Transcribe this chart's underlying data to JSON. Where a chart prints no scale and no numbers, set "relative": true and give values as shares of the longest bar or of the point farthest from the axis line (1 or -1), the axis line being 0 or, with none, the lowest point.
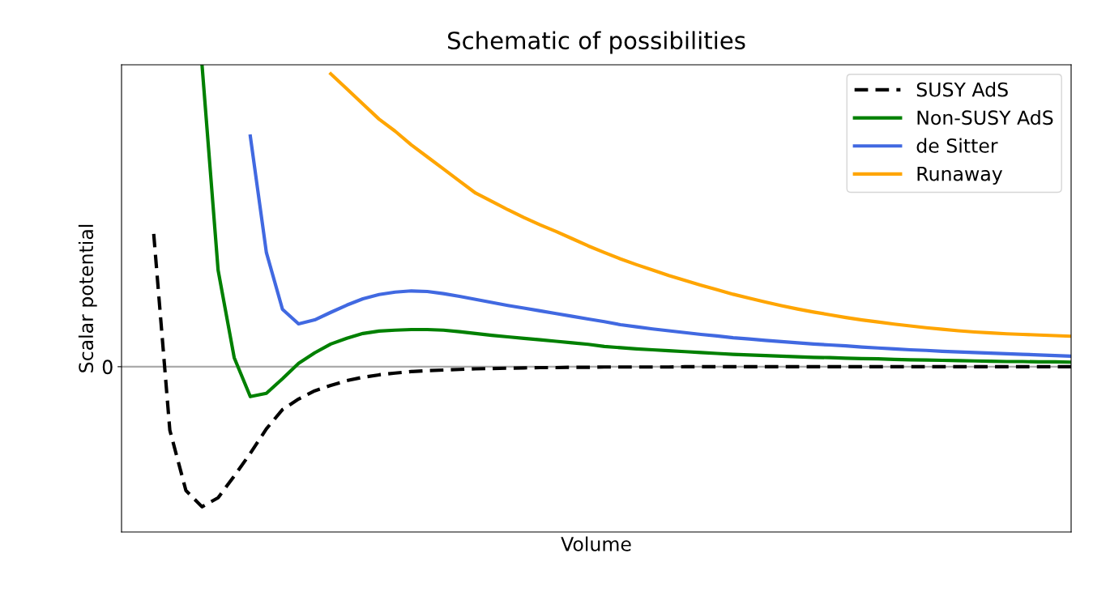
{
  "chart_data": {
    "type": "line",
    "title": "Schematic of possibilities",
    "xlabel": "Volume",
    "ylabel": "Scalar potential",
    "relative": true,
    "legend": "top right",
    "categories": [
      null,
      null,
      null,
      null,
      null,
      null,
      null,
      null,
      null,
      null,
      null,
      null,
      null,
      null,
      null,
      null,
      null,
      null,
      null,
      null,
      null,
      null,
      null,
      null,
      null,
      null,
      null,
      null,
      null,
      null,
      null,
      null,
      null,
      null,
      null,
      null,
      null,
      null,
      null,
      null,
      null,
      null,
      null,
      null,
      null,
      null,
      null,
      null,
      null,
      null,
      null,
      null,
      null,
      null,
      null,
      null,
      null,
      null,
      null,
      null
    ],
    "ref_lines": [
      {
        "axis": "y",
        "value": 0,
        "label": "0",
        "color": "#aaaaaa"
      }
    ],
    "series": [
      {
        "name": "SUSY AdS",
        "color": "#000000",
        "line_style": "dashed",
        "values": [
          null,
          null,
          0.44,
          -0.21,
          -0.41,
          -0.464,
          -0.434,
          -0.362,
          -0.287,
          -0.206,
          -0.142,
          -0.107,
          -0.08,
          -0.062,
          -0.046,
          -0.035,
          -0.027,
          -0.021,
          -0.016,
          -0.013,
          -0.011,
          -0.009,
          -0.007,
          -0.006,
          -0.005,
          -0.004,
          -0.003,
          -0.003,
          -0.002,
          -0.002,
          -0.001,
          -0.001,
          -0.001,
          -0.001,
          -0.001,
          0,
          0,
          0,
          0,
          0,
          0,
          0,
          0,
          0,
          0,
          0,
          0,
          0,
          0,
          0,
          0,
          0,
          0,
          0,
          0,
          0,
          0,
          0,
          0,
          0
        ]
      },
      {
        "name": "Non-SUSY AdS",
        "color": "#008000",
        "line_style": "solid",
        "values": [
          null,
          null,
          null,
          null,
          null,
          1,
          0.32,
          0.03,
          -0.099,
          -0.088,
          -0.04,
          0.011,
          0.046,
          0.075,
          0.094,
          0.11,
          0.118,
          0.121,
          0.123,
          0.123,
          0.121,
          0.116,
          0.11,
          0.104,
          0.099,
          0.094,
          0.089,
          0.084,
          0.079,
          0.074,
          0.067,
          0.063,
          0.059,
          0.056,
          0.053,
          0.05,
          0.047,
          0.044,
          0.041,
          0.039,
          0.037,
          0.035,
          0.033,
          0.031,
          0.03,
          0.028,
          0.027,
          0.026,
          0.024,
          0.023,
          0.022,
          0.021,
          0.02,
          0.019,
          0.018,
          0.017,
          0.017,
          0.016,
          0.016,
          0.015
        ]
      },
      {
        "name": "de Sitter",
        "color": "#4169e1",
        "line_style": "solid",
        "values": [
          null,
          null,
          null,
          null,
          null,
          null,
          null,
          null,
          0.764,
          0.378,
          0.19,
          0.142,
          0.155,
          0.18,
          0.204,
          0.225,
          0.239,
          0.247,
          0.251,
          0.249,
          0.242,
          0.233,
          0.223,
          0.213,
          0.203,
          0.194,
          0.185,
          0.176,
          0.167,
          0.158,
          0.149,
          0.139,
          0.132,
          0.125,
          0.119,
          0.113,
          0.107,
          0.102,
          0.096,
          0.092,
          0.087,
          0.083,
          0.079,
          0.075,
          0.072,
          0.069,
          0.065,
          0.062,
          0.059,
          0.056,
          0.054,
          0.051,
          0.049,
          0.047,
          0.045,
          0.043,
          0.041,
          0.039,
          0.037,
          0.035
        ]
      },
      {
        "name": "Runaway",
        "color": "#ffa500",
        "line_style": "solid",
        "values": [
          null,
          null,
          null,
          null,
          null,
          null,
          null,
          null,
          null,
          null,
          null,
          null,
          null,
          0.97,
          0.92,
          0.87,
          0.82,
          0.78,
          0.735,
          0.695,
          0.655,
          0.615,
          0.575,
          0.548,
          0.52,
          0.494,
          0.47,
          0.448,
          0.424,
          0.4,
          0.378,
          0.357,
          0.338,
          0.32,
          0.302,
          0.286,
          0.27,
          0.255,
          0.24,
          0.227,
          0.214,
          0.202,
          0.191,
          0.181,
          0.172,
          0.163,
          0.155,
          0.148,
          0.141,
          0.135,
          0.129,
          0.124,
          0.119,
          0.115,
          0.112,
          0.109,
          0.107,
          0.105,
          0.103,
          0.101
        ]
      }
    ]
  }
}
